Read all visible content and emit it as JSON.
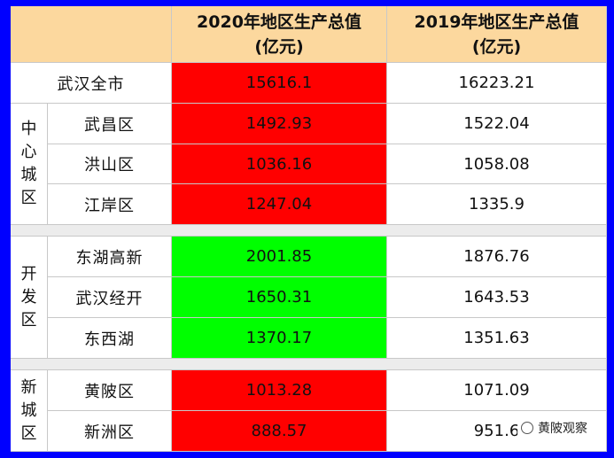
{
  "table": {
    "header": {
      "col_2020_line1": "2020年地区生产总值",
      "col_2020_line2": "(亿元)",
      "col_2019_line1": "2019年地区生产总值",
      "col_2019_line2": "(亿元)"
    },
    "city_total": {
      "label": "武汉全市",
      "v2020": "15616.1",
      "v2019": "16223.21"
    },
    "groups": [
      {
        "group_label": [
          "中",
          "心",
          "城",
          "区"
        ],
        "rows": [
          {
            "label": "武昌区",
            "v2020": "1492.93",
            "v2019": "1522.04",
            "color": "#ff0000"
          },
          {
            "label": "洪山区",
            "v2020": "1036.16",
            "v2019": "1058.08",
            "color": "#ff0000"
          },
          {
            "label": "江岸区",
            "v2020": "1247.04",
            "v2019": "1335.9",
            "color": "#ff0000"
          }
        ]
      },
      {
        "group_label": [
          "开",
          "发",
          "区"
        ],
        "rows": [
          {
            "label": "东湖高新",
            "v2020": "2001.85",
            "v2019": "1876.76",
            "color": "#00ff00"
          },
          {
            "label": "武汉经开",
            "v2020": "1650.31",
            "v2019": "1643.53",
            "color": "#00ff00"
          },
          {
            "label": "东西湖",
            "v2020": "1370.17",
            "v2019": "1351.63",
            "color": "#00ff00"
          }
        ]
      },
      {
        "group_label": [
          "新",
          "城",
          "区"
        ],
        "rows": [
          {
            "label": "黄陂区",
            "v2020": "1013.28",
            "v2019": "1071.09",
            "color": "#ff0000"
          },
          {
            "label": "新洲区",
            "v2020": "888.57",
            "v2019": "951.6",
            "color": "#ff0000"
          }
        ]
      }
    ]
  },
  "watermark": {
    "text": "黄陂观察",
    "icon": "wechat-icon"
  },
  "colors": {
    "border": "#0000ff",
    "header_bg": "#fcd89e",
    "decrease": "#ff0000",
    "increase": "#00ff00"
  }
}
